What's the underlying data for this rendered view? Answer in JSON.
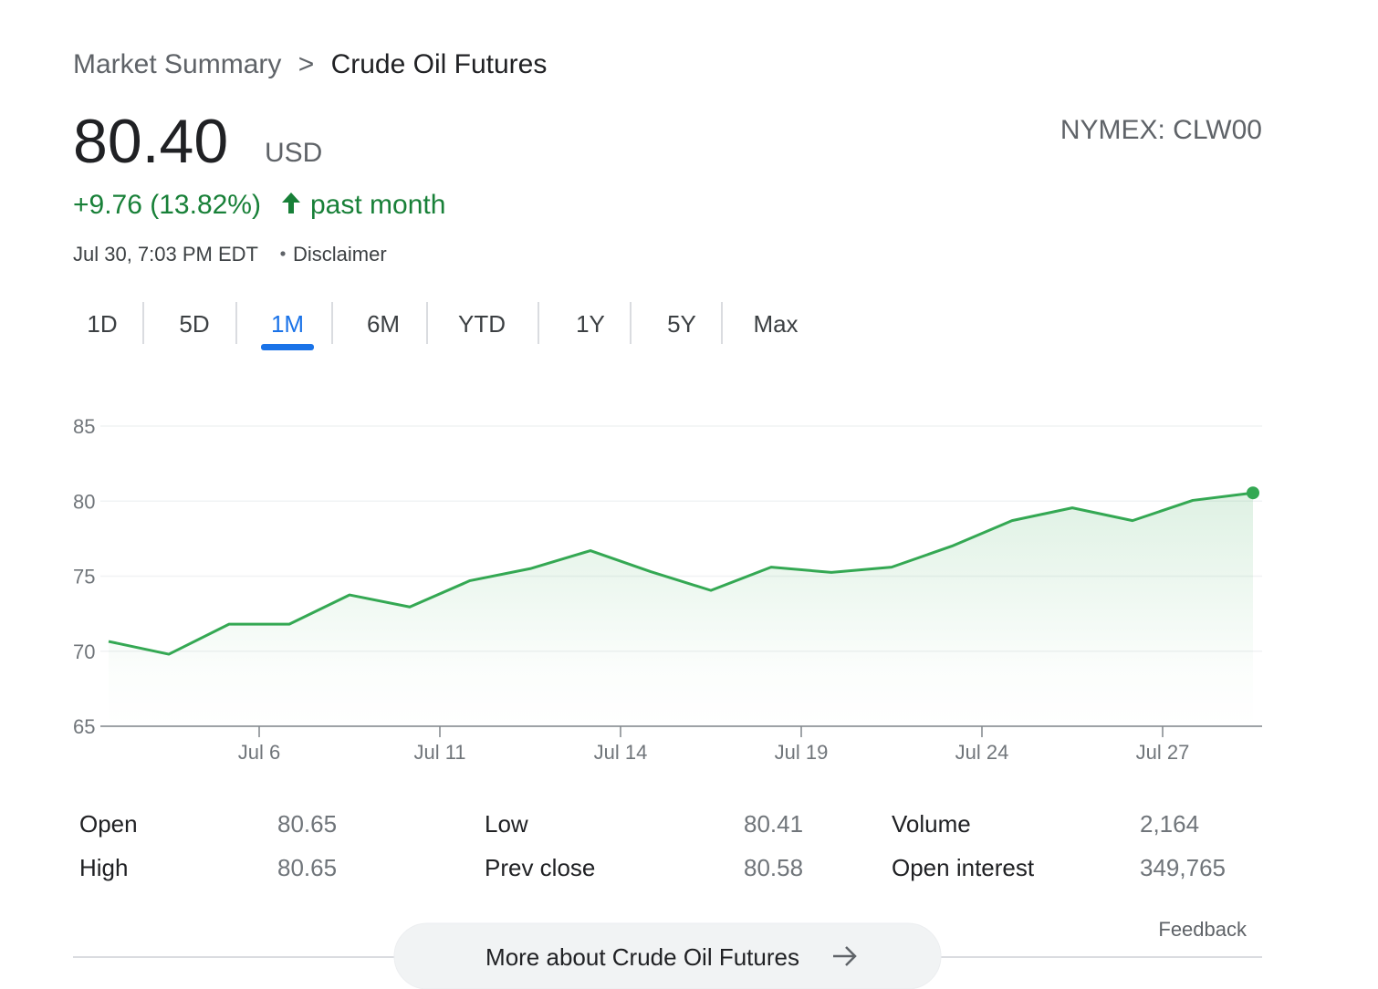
{
  "header": {
    "breadcrumb": [
      "Market Summary",
      ">",
      "Crude Oil Futures"
    ],
    "price": "80.40",
    "currency": "USD",
    "exchange": "NYMEX: CLW00",
    "change": "+9.76 (13.82%)",
    "period": "past month",
    "timestamp": "Jul 30, 7:03 PM EDT",
    "disclaimer": "Disclaimer"
  },
  "tabs": {
    "items": [
      "1D",
      "5D",
      "1M",
      "6M",
      "YTD",
      "1Y",
      "5Y",
      "Max"
    ],
    "selected": "1M"
  },
  "chart_data": {
    "type": "line",
    "categories": [
      null,
      null,
      null,
      "Jul 6",
      null,
      null,
      "Jul 11",
      null,
      null,
      "Jul 14",
      null,
      null,
      "Jul 19",
      null,
      null,
      "Jul 24",
      null,
      null,
      "Jul 27",
      null
    ],
    "series": [
      {
        "name": "Crude Oil Futures",
        "color": "#34a853",
        "values": [
          70.65,
          69.8,
          71.8,
          71.8,
          73.75,
          72.95,
          74.7,
          75.5,
          76.7,
          75.3,
          74.05,
          75.6,
          75.25,
          75.6,
          77.0,
          78.7,
          79.55,
          78.7,
          80.05,
          80.55
        ]
      }
    ],
    "ylim": [
      65,
      85
    ],
    "yticks": [
      65,
      70,
      75,
      80,
      85
    ],
    "grid": true
  },
  "stats": {
    "rows": [
      [
        [
          "Open",
          "80.65"
        ],
        [
          "Low",
          "80.41"
        ],
        [
          "Volume",
          "2,164"
        ]
      ],
      [
        [
          "High",
          "80.65"
        ],
        [
          "Prev close",
          "80.58"
        ],
        [
          "Open interest",
          "349,765"
        ]
      ]
    ]
  },
  "footer": {
    "feedback": "Feedback",
    "more_button": "More about Crude Oil Futures"
  }
}
